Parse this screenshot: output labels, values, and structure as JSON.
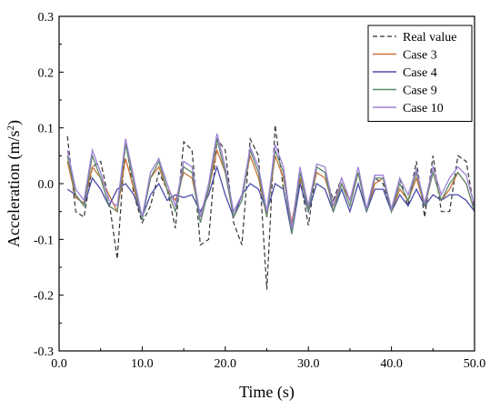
{
  "chart_data": {
    "type": "line",
    "xlabel": "Time (s)",
    "ylabel": "Acceleration (m/s",
    "ylabel_sup": "2",
    "ylabel_close": ")",
    "xlim": [
      0,
      50
    ],
    "ylim": [
      -0.3,
      0.3
    ],
    "xticks": [
      0,
      10,
      20,
      30,
      40,
      50
    ],
    "xtick_labels": [
      "0.0",
      "10.0",
      "20.0",
      "30.0",
      "40.0",
      "50.0"
    ],
    "yticks": [
      -0.3,
      -0.2,
      -0.1,
      0.0,
      0.1,
      0.2,
      0.3
    ],
    "ytick_labels": [
      "-0.3",
      "-0.2",
      "-0.1",
      "0.0",
      "0.1",
      "0.2",
      "0.3"
    ],
    "grid": false,
    "legend_position": "top-right",
    "x": [
      1,
      2,
      3,
      4,
      5,
      6,
      7,
      8,
      9,
      10,
      11,
      12,
      13,
      14,
      15,
      16,
      17,
      18,
      19,
      20,
      21,
      22,
      23,
      24,
      25,
      26,
      27,
      28,
      29,
      30,
      31,
      32,
      33,
      34,
      35,
      36,
      37,
      38,
      39,
      40,
      41,
      42,
      43,
      44,
      45,
      46,
      47,
      48,
      49,
      50
    ],
    "series": [
      {
        "name": "Real value",
        "color": "#333333",
        "dash": true,
        "values": [
          0.085,
          -0.05,
          -0.06,
          0.03,
          0.04,
          -0.03,
          -0.135,
          0.08,
          -0.02,
          -0.07,
          -0.04,
          0.02,
          -0.01,
          -0.08,
          0.075,
          0.06,
          -0.11,
          -0.1,
          0.08,
          0.06,
          -0.07,
          -0.11,
          0.08,
          0.05,
          -0.19,
          0.105,
          -0.01,
          -0.085,
          0.01,
          -0.075,
          0.03,
          0.02,
          -0.03,
          0.01,
          -0.03,
          0.02,
          -0.05,
          0.01,
          0.0,
          -0.05,
          0.01,
          -0.04,
          0.04,
          -0.06,
          0.05,
          -0.05,
          -0.05,
          0.05,
          0.04,
          -0.05
        ]
      },
      {
        "name": "Case 3",
        "color": "#c87137",
        "values": [
          0.04,
          -0.025,
          -0.035,
          0.03,
          0.01,
          -0.02,
          -0.05,
          0.045,
          -0.01,
          -0.06,
          0.01,
          0.03,
          -0.01,
          -0.03,
          0.02,
          0.01,
          -0.06,
          -0.01,
          0.06,
          0.02,
          -0.06,
          -0.02,
          0.05,
          0.01,
          -0.06,
          0.05,
          0.01,
          -0.07,
          0.01,
          -0.04,
          0.02,
          0.01,
          -0.04,
          0.0,
          -0.03,
          0.02,
          -0.05,
          0.0,
          0.01,
          -0.05,
          -0.01,
          -0.03,
          0.01,
          -0.04,
          0.02,
          -0.03,
          -0.01,
          0.02,
          0.0,
          -0.05
        ]
      },
      {
        "name": "Case 4",
        "color": "#4a4aa8",
        "values": [
          -0.01,
          -0.02,
          -0.04,
          0.01,
          -0.01,
          -0.04,
          -0.01,
          -0.0,
          -0.02,
          -0.06,
          -0.02,
          0.0,
          -0.03,
          -0.02,
          -0.025,
          -0.02,
          -0.05,
          -0.02,
          0.03,
          -0.02,
          -0.06,
          -0.02,
          0.0,
          -0.01,
          -0.05,
          0.0,
          -0.01,
          -0.09,
          0.0,
          -0.05,
          0.0,
          -0.01,
          -0.05,
          -0.01,
          -0.05,
          0.0,
          -0.05,
          -0.01,
          -0.01,
          -0.05,
          -0.02,
          -0.04,
          -0.01,
          -0.04,
          -0.02,
          -0.03,
          -0.02,
          -0.02,
          -0.03,
          -0.05
        ]
      },
      {
        "name": "Case 9",
        "color": "#5e8a6a",
        "values": [
          0.05,
          -0.02,
          -0.04,
          0.05,
          0.01,
          -0.04,
          -0.05,
          0.07,
          0.0,
          -0.065,
          0.01,
          0.04,
          -0.01,
          -0.05,
          0.03,
          0.02,
          -0.07,
          -0.01,
          0.08,
          0.02,
          -0.06,
          -0.03,
          0.06,
          0.02,
          -0.06,
          0.06,
          0.02,
          -0.09,
          0.02,
          -0.05,
          0.03,
          0.02,
          -0.05,
          0.0,
          -0.04,
          0.02,
          -0.05,
          0.01,
          0.01,
          -0.05,
          0.0,
          -0.03,
          0.02,
          -0.04,
          0.02,
          -0.03,
          0.0,
          0.02,
          0.0,
          -0.05
        ]
      },
      {
        "name": "Case 10",
        "color": "#9d7fd6",
        "values": [
          0.06,
          -0.01,
          -0.03,
          0.06,
          0.02,
          -0.03,
          -0.04,
          0.08,
          0.01,
          -0.06,
          0.02,
          0.045,
          0.0,
          -0.04,
          0.04,
          0.03,
          -0.06,
          0.0,
          0.09,
          0.03,
          -0.05,
          -0.02,
          0.065,
          0.03,
          -0.05,
          0.07,
          0.03,
          -0.08,
          0.03,
          -0.04,
          0.035,
          0.03,
          -0.04,
          0.01,
          -0.03,
          0.03,
          -0.045,
          0.015,
          0.015,
          -0.045,
          0.01,
          -0.02,
          0.025,
          -0.035,
          0.03,
          -0.02,
          0.01,
          0.03,
          0.015,
          -0.04
        ]
      }
    ]
  }
}
